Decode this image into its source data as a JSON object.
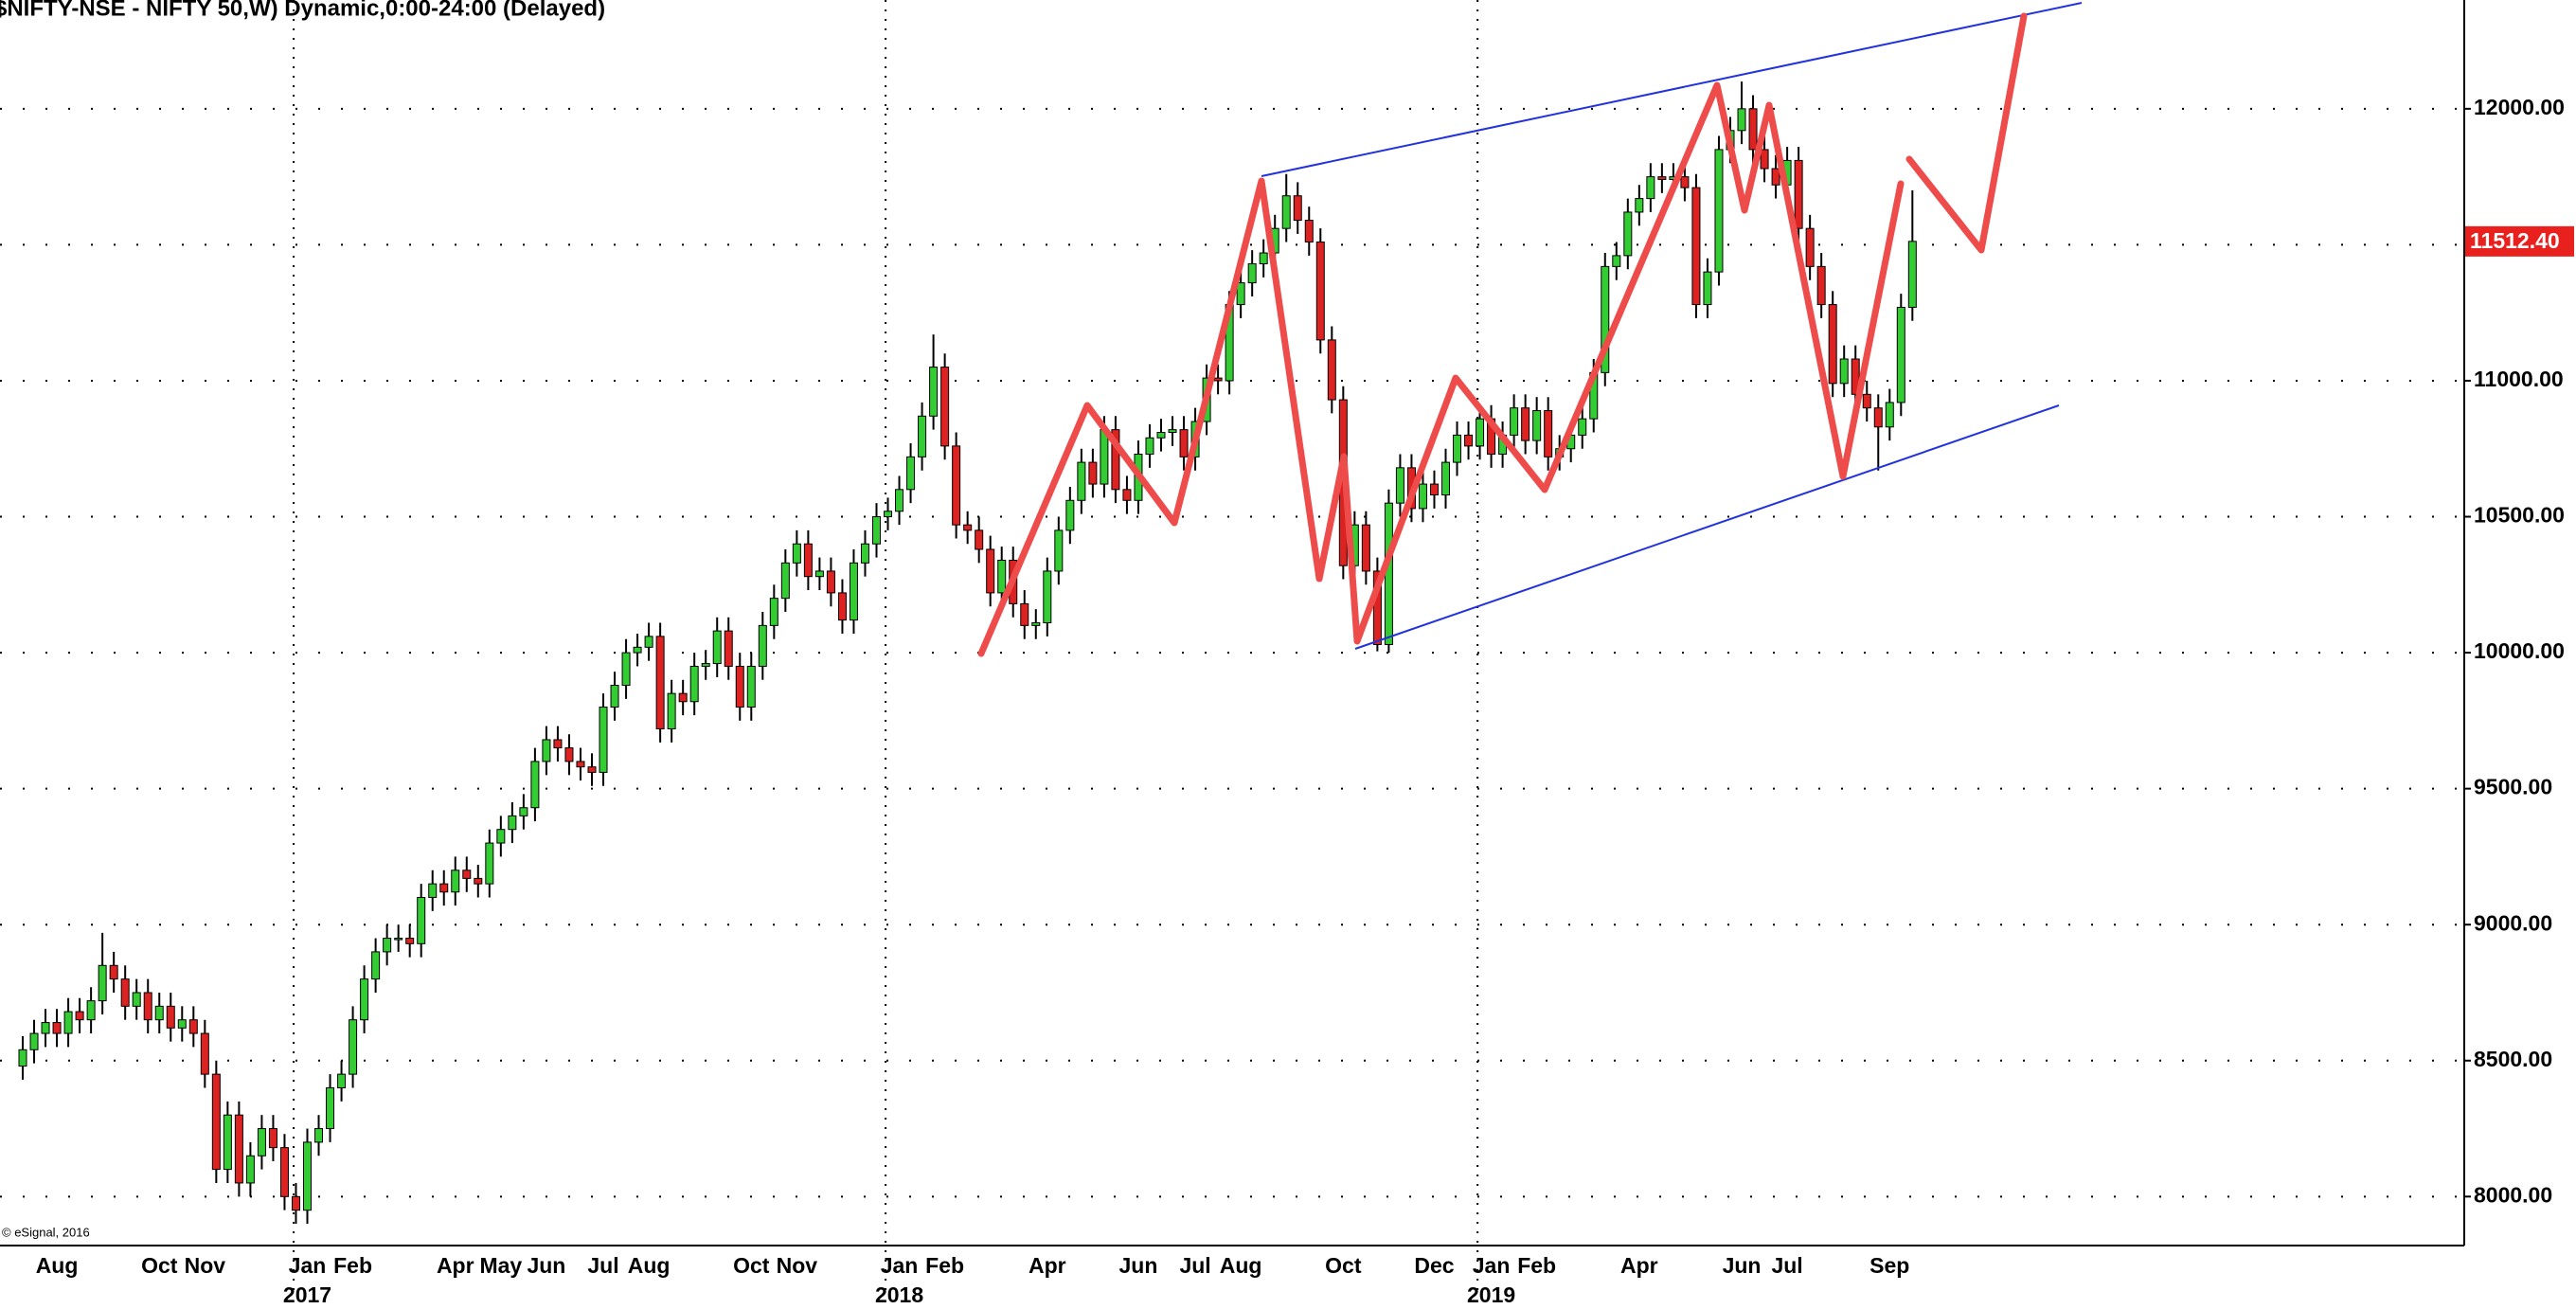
{
  "chart_data": {
    "type": "candlestick",
    "title": "$NIFTY-NSE - NIFTY 50,W) Dynamic,0:00-24:00 (Delayed)",
    "copyright": "© eSignal, 2016",
    "up_color": "#33cc33",
    "down_color": "#dd2222",
    "grid": true,
    "ylim": [
      7820,
      12400
    ],
    "yticks": [
      {
        "value": 8000,
        "label": "8000.00"
      },
      {
        "value": 8500,
        "label": "8500.00"
      },
      {
        "value": 9000,
        "label": "9000.00"
      },
      {
        "value": 9500,
        "label": "9500.00"
      },
      {
        "value": 10000,
        "label": "10000.00"
      },
      {
        "value": 10500,
        "label": "10500.00"
      },
      {
        "value": 11000,
        "label": "11000.00"
      },
      {
        "value": 11500,
        "label": "11500.00"
      },
      {
        "value": 12000,
        "label": "12000.00"
      }
    ],
    "last_price": {
      "value": 11512.4,
      "label": "11512.40"
    },
    "categories": [
      null,
      null,
      null,
      "Aug",
      null,
      null,
      null,
      null,
      null,
      null,
      null,
      null,
      "Oct",
      null,
      null,
      null,
      "Nov",
      null,
      null,
      null,
      null,
      null,
      null,
      null,
      null,
      "Jan",
      null,
      null,
      null,
      "Feb",
      null,
      null,
      null,
      null,
      null,
      null,
      null,
      null,
      "Apr",
      null,
      null,
      null,
      "May",
      null,
      null,
      null,
      "Jun",
      null,
      null,
      null,
      null,
      "Jul",
      null,
      null,
      null,
      "Aug",
      null,
      null,
      null,
      null,
      null,
      null,
      null,
      null,
      "Oct",
      null,
      null,
      null,
      "Nov",
      null,
      null,
      null,
      null,
      null,
      null,
      null,
      null,
      "Jan",
      null,
      null,
      null,
      "Feb",
      null,
      null,
      null,
      null,
      null,
      null,
      null,
      null,
      "Apr",
      null,
      null,
      null,
      null,
      null,
      null,
      null,
      "Jun",
      null,
      null,
      null,
      null,
      "Jul",
      null,
      null,
      null,
      "Aug",
      null,
      null,
      null,
      null,
      null,
      null,
      null,
      null,
      "Oct",
      null,
      null,
      null,
      null,
      null,
      null,
      null,
      "Dec",
      null,
      null,
      null,
      null,
      "Jan",
      null,
      null,
      null,
      "Feb",
      null,
      null,
      null,
      null,
      null,
      null,
      null,
      null,
      "Apr",
      null,
      null,
      null,
      null,
      null,
      null,
      null,
      null,
      "Jun",
      null,
      null,
      null,
      "Jul",
      null,
      null,
      null,
      null,
      null,
      null,
      null,
      null,
      "Sep",
      null,
      null
    ],
    "years": [
      null,
      null,
      null,
      null,
      null,
      null,
      null,
      null,
      null,
      null,
      null,
      null,
      null,
      null,
      null,
      null,
      null,
      null,
      null,
      null,
      null,
      null,
      null,
      null,
      null,
      "2017",
      null,
      null,
      null,
      null,
      null,
      null,
      null,
      null,
      null,
      null,
      null,
      null,
      null,
      null,
      null,
      null,
      null,
      null,
      null,
      null,
      null,
      null,
      null,
      null,
      null,
      null,
      null,
      null,
      null,
      null,
      null,
      null,
      null,
      null,
      null,
      null,
      null,
      null,
      null,
      null,
      null,
      null,
      null,
      null,
      null,
      null,
      null,
      null,
      null,
      null,
      null,
      "2018",
      null,
      null,
      null,
      null,
      null,
      null,
      null,
      null,
      null,
      null,
      null,
      null,
      null,
      null,
      null,
      null,
      null,
      null,
      null,
      null,
      null,
      null,
      null,
      null,
      null,
      null,
      null,
      null,
      null,
      null,
      null,
      null,
      null,
      null,
      null,
      null,
      null,
      null,
      null,
      null,
      null,
      null,
      null,
      null,
      null,
      null,
      null,
      null,
      null,
      null,
      null,
      "2019",
      null,
      null,
      null,
      null,
      null,
      null,
      null,
      null,
      null,
      null,
      null,
      null,
      null,
      null,
      null,
      null,
      null,
      null,
      null,
      null,
      null,
      null,
      null,
      null,
      null,
      null,
      null,
      null,
      null,
      null,
      null,
      null,
      null,
      null,
      null,
      null,
      null
    ],
    "open": [
      8480,
      8540,
      8600,
      8640,
      8600,
      8680,
      8650,
      8720,
      8850,
      8800,
      8700,
      8750,
      8650,
      8700,
      8620,
      8650,
      8600,
      8450,
      8100,
      8300,
      8050,
      8150,
      8250,
      8180,
      8000,
      7950,
      8200,
      8250,
      8400,
      8450,
      8650,
      8800,
      8900,
      8950,
      8950,
      8930,
      9100,
      9150,
      9120,
      9200,
      9170,
      9150,
      9300,
      9350,
      9400,
      9430,
      9600,
      9680,
      9650,
      9600,
      9580,
      9560,
      9800,
      9880,
      10000,
      10020,
      10060,
      9720,
      9850,
      9820,
      9950,
      9960,
      10080,
      9950,
      9800,
      9950,
      10100,
      10200,
      10330,
      10400,
      10280,
      10300,
      10220,
      10120,
      10330,
      10400,
      10500,
      10520,
      10600,
      10720,
      10870,
      11050,
      10760,
      10470,
      10450,
      10380,
      10220,
      10340,
      10180,
      10100,
      10110,
      10300,
      10450,
      10560,
      10700,
      10620,
      10820,
      10600,
      10560,
      10730,
      10790,
      10810,
      10820,
      10720,
      10850,
      11010,
      11000,
      11280,
      11360,
      11430,
      11470,
      11560,
      11680,
      11590,
      11510,
      11150,
      10930,
      10320,
      10470,
      10300,
      10030,
      10550,
      10680,
      10530,
      10620,
      10580,
      10700,
      10800,
      10760,
      10860,
      10730,
      10800,
      10900,
      10780,
      10890,
      10720,
      10750,
      10800,
      10860,
      11030,
      11420,
      11460,
      11620,
      11670,
      11750,
      11740,
      11750,
      11710,
      11280,
      11400,
      11850,
      11920,
      12000,
      11850,
      11780,
      11720,
      11810,
      11560,
      11420,
      11280,
      10990,
      11080,
      10950,
      10900,
      10830,
      10920,
      11270
    ],
    "high": [
      8590,
      8650,
      8690,
      8690,
      8730,
      8730,
      8770,
      8970,
      8900,
      8850,
      8800,
      8800,
      8750,
      8750,
      8700,
      8700,
      8650,
      8500,
      8350,
      8350,
      8200,
      8300,
      8300,
      8230,
      8050,
      8250,
      8300,
      8450,
      8500,
      8700,
      8850,
      8950,
      9000,
      9000,
      9000,
      9150,
      9200,
      9200,
      9250,
      9250,
      9220,
      9350,
      9400,
      9450,
      9480,
      9650,
      9730,
      9730,
      9700,
      9650,
      9630,
      9850,
      9930,
      10050,
      10070,
      10110,
      10110,
      9900,
      9900,
      10000,
      10010,
      10130,
      10130,
      10000,
      10000,
      10150,
      10250,
      10380,
      10450,
      10450,
      10350,
      10350,
      10270,
      10380,
      10450,
      10550,
      10570,
      10650,
      10770,
      10920,
      11170,
      11100,
      10810,
      10520,
      10500,
      10430,
      10390,
      10390,
      10230,
      10160,
      10350,
      10500,
      10610,
      10750,
      10750,
      10870,
      10870,
      10650,
      10780,
      10840,
      10860,
      10870,
      10870,
      10900,
      11060,
      11060,
      11330,
      11410,
      11480,
      11520,
      11610,
      11760,
      11730,
      11640,
      11560,
      11200,
      10980,
      10520,
      10520,
      10350,
      10600,
      10730,
      10730,
      10670,
      10670,
      10750,
      10850,
      10850,
      10910,
      10910,
      10850,
      10950,
      10950,
      10940,
      10940,
      10800,
      10850,
      10910,
      11080,
      11470,
      11510,
      11670,
      11720,
      11800,
      11800,
      11800,
      11800,
      11760,
      11450,
      11900,
      11970,
      12100,
      12050,
      11900,
      11830,
      11860,
      11860,
      11610,
      11470,
      11330,
      11130,
      11130,
      11000,
      10950,
      10970,
      11320,
      11700
    ],
    "low": [
      8430,
      8490,
      8550,
      8550,
      8550,
      8600,
      8600,
      8670,
      8750,
      8650,
      8650,
      8600,
      8600,
      8570,
      8570,
      8550,
      8400,
      8050,
      8050,
      8000,
      8000,
      8100,
      8130,
      7950,
      7900,
      7900,
      8150,
      8200,
      8350,
      8400,
      8600,
      8750,
      8850,
      8900,
      8880,
      8880,
      9050,
      9070,
      9070,
      9120,
      9100,
      9100,
      9250,
      9300,
      9350,
      9380,
      9550,
      9600,
      9550,
      9530,
      9510,
      9510,
      9750,
      9830,
      9950,
      9970,
      9670,
      9670,
      9770,
      9770,
      9900,
      9910,
      9900,
      9750,
      9750,
      9900,
      10050,
      10150,
      10280,
      10230,
      10230,
      10170,
      10070,
      10070,
      10280,
      10350,
      10450,
      10470,
      10550,
      10670,
      10820,
      10710,
      10420,
      10400,
      10330,
      10170,
      10170,
      10130,
      10050,
      10050,
      10060,
      10250,
      10400,
      10510,
      10570,
      10570,
      10550,
      10510,
      10510,
      10680,
      10740,
      10760,
      10670,
      10670,
      10800,
      10950,
      10950,
      11230,
      11310,
      11380,
      11420,
      11510,
      11540,
      11460,
      11100,
      10880,
      10270,
      10270,
      10250,
      10005,
      10000,
      10500,
      10480,
      10480,
      10530,
      10530,
      10650,
      10710,
      10710,
      10680,
      10680,
      10750,
      10730,
      10730,
      10670,
      10670,
      10700,
      10750,
      10810,
      10980,
      11370,
      11410,
      11570,
      11620,
      11690,
      11690,
      11660,
      11230,
      11230,
      11350,
      11800,
      11870,
      11800,
      11730,
      11670,
      11670,
      11510,
      11370,
      11230,
      10940,
      10940,
      10900,
      10850,
      10670,
      10780,
      10870,
      11220
    ],
    "close": [
      8540,
      8600,
      8640,
      8600,
      8680,
      8650,
      8720,
      8850,
      8800,
      8700,
      8750,
      8650,
      8700,
      8620,
      8650,
      8600,
      8450,
      8100,
      8300,
      8050,
      8150,
      8250,
      8180,
      8000,
      7950,
      8200,
      8250,
      8400,
      8450,
      8650,
      8800,
      8900,
      8950,
      8950,
      8930,
      9100,
      9150,
      9120,
      9200,
      9170,
      9150,
      9300,
      9350,
      9400,
      9430,
      9600,
      9680,
      9650,
      9600,
      9580,
      9560,
      9800,
      9880,
      10000,
      10020,
      10060,
      9720,
      9850,
      9820,
      9950,
      9960,
      10080,
      9950,
      9800,
      9950,
      10100,
      10200,
      10330,
      10400,
      10280,
      10300,
      10220,
      10120,
      10330,
      10400,
      10500,
      10520,
      10600,
      10720,
      10870,
      11050,
      10760,
      10470,
      10450,
      10380,
      10220,
      10340,
      10180,
      10100,
      10110,
      10300,
      10450,
      10560,
      10700,
      10620,
      10820,
      10600,
      10560,
      10730,
      10790,
      10810,
      10820,
      10720,
      10850,
      11010,
      11000,
      11280,
      11360,
      11430,
      11470,
      11560,
      11680,
      11590,
      11510,
      11150,
      10930,
      10320,
      10470,
      10300,
      10030,
      10550,
      10680,
      10530,
      10620,
      10580,
      10700,
      10800,
      10760,
      10860,
      10730,
      10800,
      10900,
      10780,
      10890,
      10720,
      10750,
      10800,
      10860,
      11030,
      11420,
      11460,
      11620,
      11670,
      11750,
      11740,
      11750,
      11710,
      11280,
      11400,
      11850,
      11920,
      12000,
      11850,
      11780,
      11720,
      11810,
      11560,
      11420,
      11280,
      10990,
      11080,
      10950,
      10900,
      10830,
      10920,
      11270,
      11512.4
    ]
  }
}
